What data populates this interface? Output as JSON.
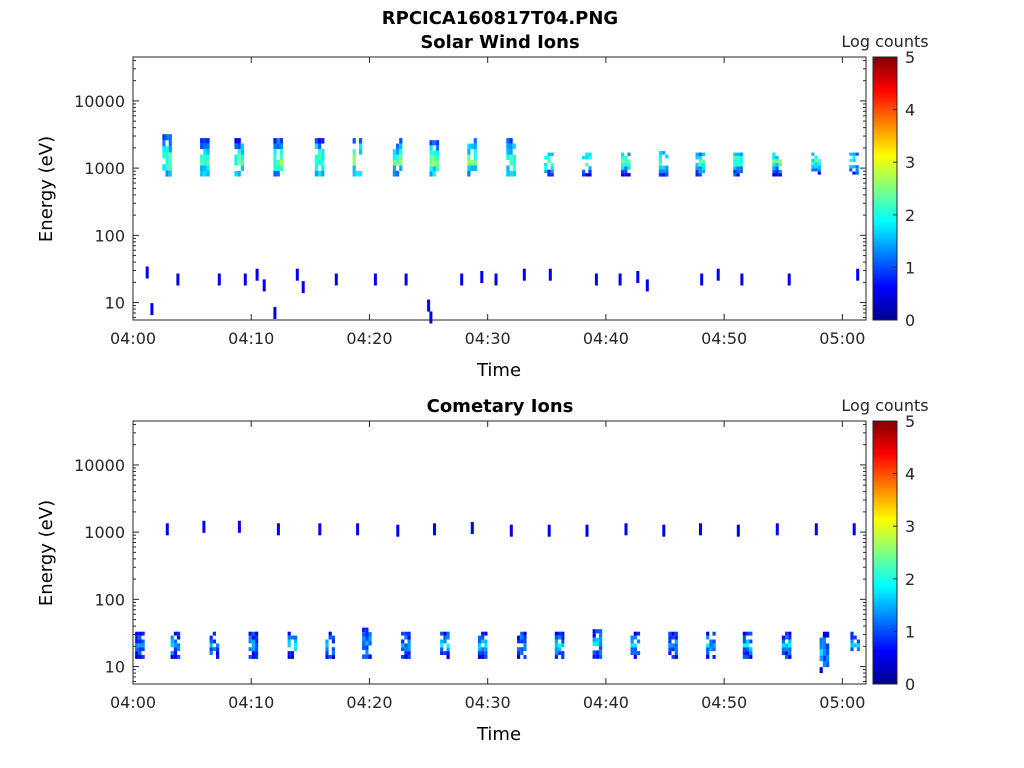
{
  "figure": {
    "title": "RPCICA160817T04.PNG"
  },
  "chart_data": [
    {
      "type": "heatmap",
      "title": "Solar Wind Ions",
      "xlabel": "Time",
      "ylabel": "Energy (eV)",
      "x_ticks": [
        "04:00",
        "04:10",
        "04:20",
        "04:30",
        "04:40",
        "04:50",
        "05:00"
      ],
      "x_tick_minutes": [
        0,
        10,
        20,
        30,
        40,
        50,
        60
      ],
      "xlim_minutes": [
        0,
        62
      ],
      "y_scale": "log",
      "y_ticks": [
        "10",
        "100",
        "1000",
        "10000"
      ],
      "y_tick_values": [
        10,
        100,
        1000,
        10000
      ],
      "ylim": [
        5.5,
        45000
      ],
      "colorbar": {
        "label": "Log counts",
        "ticks": [
          "0",
          "1",
          "2",
          "3",
          "4",
          "5"
        ],
        "range": [
          0,
          5
        ],
        "colormap": "jet"
      },
      "bursts_minutes": [
        2.9,
        6.1,
        9.0,
        12.3,
        15.8,
        19.0,
        22.4,
        25.5,
        28.7,
        32.0,
        35.2,
        38.4,
        41.7,
        44.9,
        48.0,
        51.2,
        54.5,
        57.8,
        61.0
      ],
      "bursts": [
        {
          "t": 2.9,
          "emin": 750,
          "emax": 3200,
          "peak": 1300,
          "level": 2.4
        },
        {
          "t": 6.1,
          "emin": 750,
          "emax": 2800,
          "peak": 1300,
          "level": 2.4
        },
        {
          "t": 9.0,
          "emin": 750,
          "emax": 2800,
          "peak": 1300,
          "level": 2.4
        },
        {
          "t": 12.3,
          "emin": 750,
          "emax": 2800,
          "peak": 1300,
          "level": 2.5
        },
        {
          "t": 15.8,
          "emin": 750,
          "emax": 2800,
          "peak": 1300,
          "level": 2.4
        },
        {
          "t": 19.0,
          "emin": 750,
          "emax": 2800,
          "peak": 1300,
          "level": 2.5
        },
        {
          "t": 22.4,
          "emin": 750,
          "emax": 2800,
          "peak": 1300,
          "level": 2.4
        },
        {
          "t": 25.5,
          "emin": 750,
          "emax": 2600,
          "peak": 1250,
          "level": 2.5
        },
        {
          "t": 28.7,
          "emin": 750,
          "emax": 2800,
          "peak": 1300,
          "level": 2.5
        },
        {
          "t": 32.0,
          "emin": 750,
          "emax": 2800,
          "peak": 1300,
          "level": 2.4
        },
        {
          "t": 35.2,
          "emin": 750,
          "emax": 1700,
          "peak": 1250,
          "level": 2.3
        },
        {
          "t": 38.4,
          "emin": 750,
          "emax": 1700,
          "peak": 1250,
          "level": 2.3
        },
        {
          "t": 41.7,
          "emin": 750,
          "emax": 1700,
          "peak": 1250,
          "level": 2.2
        },
        {
          "t": 44.9,
          "emin": 750,
          "emax": 1800,
          "peak": 1250,
          "level": 2.3
        },
        {
          "t": 48.0,
          "emin": 750,
          "emax": 1700,
          "peak": 1250,
          "level": 2.3
        },
        {
          "t": 51.2,
          "emin": 750,
          "emax": 1700,
          "peak": 1250,
          "level": 2.3
        },
        {
          "t": 54.5,
          "emin": 750,
          "emax": 1700,
          "peak": 1250,
          "level": 2.2
        },
        {
          "t": 57.8,
          "emin": 800,
          "emax": 1700,
          "peak": 1250,
          "level": 2.2
        },
        {
          "t": 61.0,
          "emin": 800,
          "emax": 1700,
          "peak": 1250,
          "level": 2.2
        }
      ],
      "low_energy_events": [
        {
          "t": 1.2,
          "e": 28
        },
        {
          "t": 1.6,
          "e": 8
        },
        {
          "t": 3.8,
          "e": 22
        },
        {
          "t": 7.3,
          "e": 22
        },
        {
          "t": 9.5,
          "e": 22
        },
        {
          "t": 10.5,
          "e": 26
        },
        {
          "t": 11.1,
          "e": 18
        },
        {
          "t": 12.0,
          "e": 7
        },
        {
          "t": 13.9,
          "e": 26
        },
        {
          "t": 14.4,
          "e": 17
        },
        {
          "t": 17.2,
          "e": 22
        },
        {
          "t": 20.5,
          "e": 22
        },
        {
          "t": 23.1,
          "e": 22
        },
        {
          "t": 25.0,
          "e": 9
        },
        {
          "t": 25.2,
          "e": 6
        },
        {
          "t": 27.8,
          "e": 22
        },
        {
          "t": 29.5,
          "e": 24
        },
        {
          "t": 30.7,
          "e": 22
        },
        {
          "t": 33.1,
          "e": 26
        },
        {
          "t": 35.3,
          "e": 26
        },
        {
          "t": 39.2,
          "e": 22
        },
        {
          "t": 41.2,
          "e": 22
        },
        {
          "t": 42.7,
          "e": 24
        },
        {
          "t": 43.5,
          "e": 18
        },
        {
          "t": 48.1,
          "e": 22
        },
        {
          "t": 49.5,
          "e": 26
        },
        {
          "t": 51.5,
          "e": 22
        },
        {
          "t": 55.5,
          "e": 22
        },
        {
          "t": 61.3,
          "e": 26
        }
      ]
    },
    {
      "type": "heatmap",
      "title": "Cometary Ions",
      "xlabel": "Time",
      "ylabel": "Energy (eV)",
      "x_ticks": [
        "04:00",
        "04:10",
        "04:20",
        "04:30",
        "04:40",
        "04:50",
        "05:00"
      ],
      "x_tick_minutes": [
        0,
        10,
        20,
        30,
        40,
        50,
        60
      ],
      "xlim_minutes": [
        0,
        62
      ],
      "y_scale": "log",
      "y_ticks": [
        "10",
        "100",
        "1000",
        "10000"
      ],
      "y_tick_values": [
        10,
        100,
        1000,
        10000
      ],
      "ylim": [
        5.5,
        45000
      ],
      "colorbar": {
        "label": "Log counts",
        "ticks": [
          "0",
          "1",
          "2",
          "3",
          "4",
          "5"
        ],
        "range": [
          0,
          5
        ],
        "colormap": "jet"
      },
      "bursts": [
        {
          "t": 0.6,
          "emin": 13,
          "emax": 33,
          "level": 1.2
        },
        {
          "t": 3.6,
          "emin": 13,
          "emax": 33,
          "level": 1.5
        },
        {
          "t": 6.9,
          "emin": 13,
          "emax": 33,
          "level": 1.4
        },
        {
          "t": 10.2,
          "emin": 13,
          "emax": 33,
          "level": 1.4
        },
        {
          "t": 13.5,
          "emin": 13,
          "emax": 33,
          "level": 1.6
        },
        {
          "t": 16.7,
          "emin": 13,
          "emax": 33,
          "level": 1.4
        },
        {
          "t": 19.8,
          "emin": 13,
          "emax": 38,
          "level": 1.5
        },
        {
          "t": 23.1,
          "emin": 13,
          "emax": 33,
          "level": 1.4
        },
        {
          "t": 26.4,
          "emin": 13,
          "emax": 33,
          "level": 1.6
        },
        {
          "t": 29.6,
          "emin": 13,
          "emax": 33,
          "level": 1.5
        },
        {
          "t": 32.9,
          "emin": 13,
          "emax": 33,
          "level": 1.5
        },
        {
          "t": 36.1,
          "emin": 13,
          "emax": 33,
          "level": 1.6
        },
        {
          "t": 39.3,
          "emin": 13,
          "emax": 36,
          "level": 1.5
        },
        {
          "t": 42.5,
          "emin": 13,
          "emax": 33,
          "level": 1.5
        },
        {
          "t": 45.7,
          "emin": 13,
          "emax": 33,
          "level": 1.4
        },
        {
          "t": 48.9,
          "emin": 13,
          "emax": 33,
          "level": 1.5
        },
        {
          "t": 52.0,
          "emin": 13,
          "emax": 33,
          "level": 1.6
        },
        {
          "t": 55.3,
          "emin": 13,
          "emax": 33,
          "level": 1.5
        },
        {
          "t": 58.5,
          "emin": 8,
          "emax": 33,
          "level": 1.4
        },
        {
          "t": 61.1,
          "emin": 13,
          "emax": 33,
          "level": 1.5
        }
      ],
      "high_energy_events": [
        {
          "t": 2.9,
          "e": 1100
        },
        {
          "t": 6.0,
          "e": 1200
        },
        {
          "t": 9.0,
          "e": 1200
        },
        {
          "t": 12.3,
          "e": 1100
        },
        {
          "t": 15.8,
          "e": 1100
        },
        {
          "t": 19.0,
          "e": 1100
        },
        {
          "t": 22.4,
          "e": 1050
        },
        {
          "t": 25.5,
          "e": 1100
        },
        {
          "t": 28.7,
          "e": 1150
        },
        {
          "t": 32.0,
          "e": 1050
        },
        {
          "t": 35.2,
          "e": 1050
        },
        {
          "t": 38.4,
          "e": 1050
        },
        {
          "t": 41.7,
          "e": 1100
        },
        {
          "t": 44.9,
          "e": 1050
        },
        {
          "t": 48.0,
          "e": 1100
        },
        {
          "t": 51.2,
          "e": 1050
        },
        {
          "t": 54.5,
          "e": 1100
        },
        {
          "t": 57.8,
          "e": 1100
        },
        {
          "t": 61.0,
          "e": 1100
        }
      ]
    }
  ]
}
